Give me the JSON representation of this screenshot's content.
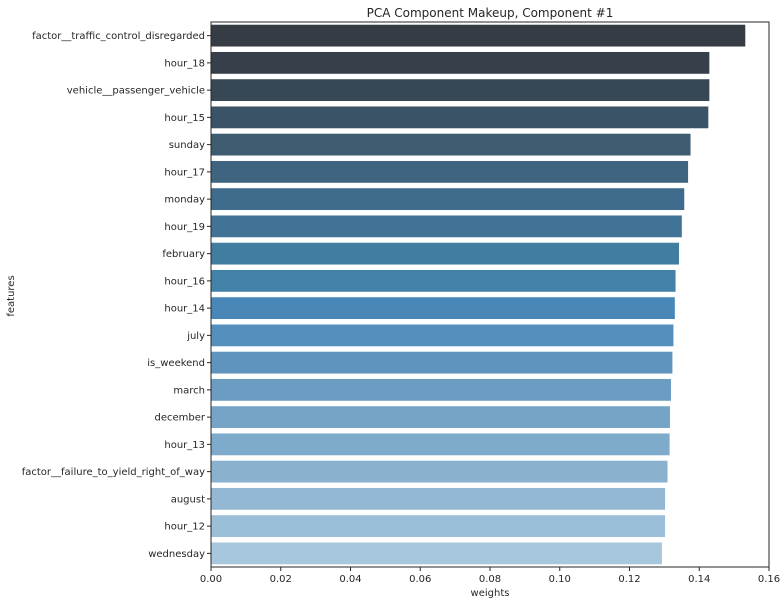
{
  "chart_data": {
    "type": "bar",
    "orientation": "horizontal",
    "title": "PCA Component Makeup, Component #1",
    "xlabel": "weights",
    "ylabel": "features",
    "xlim": [
      0,
      0.16
    ],
    "xticks": [
      "0.00",
      "0.02",
      "0.04",
      "0.06",
      "0.08",
      "0.10",
      "0.12",
      "0.14",
      "0.16"
    ],
    "grid": false,
    "categories": [
      "factor__traffic_control_disregarded",
      "hour_18",
      "vehicle__passenger_vehicle",
      "hour_15",
      "sunday",
      "hour_17",
      "monday",
      "hour_19",
      "february",
      "hour_16",
      "hour_14",
      "july",
      "is_weekend",
      "march",
      "december",
      "hour_13",
      "factor__failure_to_yield_right_of_way",
      "august",
      "hour_12",
      "wednesday"
    ],
    "values": [
      0.1532,
      0.1429,
      0.1429,
      0.1426,
      0.1375,
      0.1368,
      0.1357,
      0.135,
      0.1342,
      0.1332,
      0.133,
      0.1326,
      0.1323,
      0.1319,
      0.1316,
      0.1315,
      0.1309,
      0.1302,
      0.1302,
      0.1293
    ],
    "colors": [
      "#363c43",
      "#363f4a",
      "#384754",
      "#3b5366",
      "#3e5c70",
      "#3e6480",
      "#3f6b8c",
      "#407395",
      "#417d9e",
      "#4281a8",
      "#4887b7",
      "#558fbd",
      "#5e94be",
      "#6b9dc3",
      "#75a4c7",
      "#7eaacb",
      "#8ab2cf",
      "#94b8d3",
      "#9bbed9",
      "#a7c8dc"
    ]
  }
}
